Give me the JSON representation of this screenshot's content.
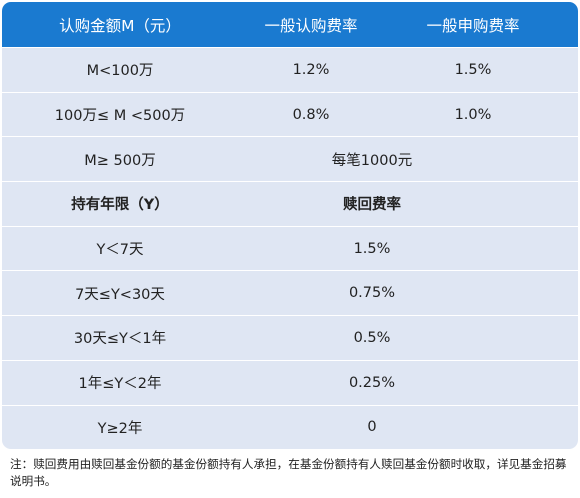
{
  "table": {
    "header": {
      "col1": "认购金额M（元）",
      "col2": "一般认购费率",
      "col3": "一般申购费率"
    },
    "subscription_rows": [
      {
        "amount": "M<100万",
        "subscribe_rate": "1.2%",
        "purchase_rate": "1.5%"
      },
      {
        "amount": "100万≤ M <500万",
        "subscribe_rate": "0.8%",
        "purchase_rate": "1.0%"
      }
    ],
    "flat_row": {
      "amount": "M≥ 500万",
      "fee": "每笔1000元"
    },
    "redemption_header": {
      "col1": "持有年限（Y）",
      "col2": "赎回费率"
    },
    "redemption_rows": [
      {
        "period": "Y＜7天",
        "rate": "1.5%"
      },
      {
        "period": "7天≤Y<30天",
        "rate": "0.75%"
      },
      {
        "period": "30天≤Y＜1年",
        "rate": "0.5%"
      },
      {
        "period": "1年≤Y＜2年",
        "rate": "0.25%"
      },
      {
        "period": "Y≥2年",
        "rate": "0"
      }
    ]
  },
  "note": "注：赎回费用由赎回基金份额的基金份额持有人承担，在基金份额持有人赎回基金份额时收取，详见基金招募说明书。",
  "colors": {
    "header_bg": "#1a7ad0",
    "row_bg": "#dfe6f3",
    "divider": "#ffffff"
  }
}
